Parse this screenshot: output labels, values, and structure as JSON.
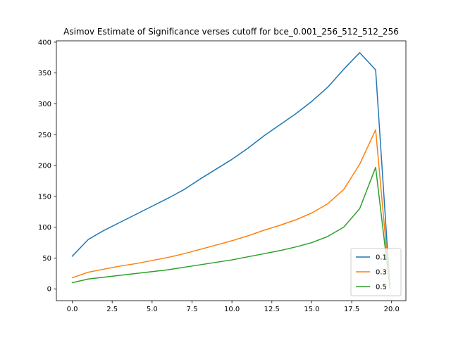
{
  "chart_data": {
    "type": "line",
    "title": "Asimov Estimate of Significance verses cutoff for bce_0.001_256_512_512_256",
    "xlabel": "",
    "ylabel": "",
    "xlim": [
      -0.995,
      20.895
    ],
    "ylim": [
      -19.15,
      402.15
    ],
    "xticks": [
      0.0,
      2.5,
      5.0,
      7.5,
      10.0,
      12.5,
      15.0,
      17.5,
      20.0
    ],
    "xtick_labels": [
      "0.0",
      "2.5",
      "5.0",
      "7.5",
      "10.0",
      "12.5",
      "15.0",
      "17.5",
      "20.0"
    ],
    "yticks": [
      0,
      50,
      100,
      150,
      200,
      250,
      300,
      350,
      400
    ],
    "ytick_labels": [
      "0",
      "50",
      "100",
      "150",
      "200",
      "250",
      "300",
      "350",
      "400"
    ],
    "grid": false,
    "legend_position": "lower-right",
    "x": [
      0,
      1,
      2,
      3,
      4,
      5,
      6,
      7,
      8,
      9,
      10,
      11,
      12,
      13,
      14,
      15,
      16,
      17,
      18,
      19,
      19.9
    ],
    "series": [
      {
        "name": "0.1",
        "color": "#1f77b4",
        "values": [
          53,
          80,
          95,
          108,
          121,
          134,
          147,
          161,
          178,
          194,
          210,
          228,
          248,
          266,
          284,
          304,
          327,
          356,
          383,
          355,
          1
        ]
      },
      {
        "name": "0.3",
        "color": "#ff7f0e",
        "values": [
          18,
          27,
          32,
          37,
          41,
          46,
          51,
          57,
          64,
          71,
          78,
          86,
          95,
          103,
          112,
          123,
          138,
          161,
          202,
          258,
          1
        ]
      },
      {
        "name": "0.5",
        "color": "#2ca02c",
        "values": [
          10,
          16,
          19,
          22,
          25,
          28,
          31,
          35,
          39,
          43,
          47,
          52,
          57,
          62,
          68,
          75,
          85,
          100,
          130,
          197,
          1
        ]
      }
    ]
  }
}
